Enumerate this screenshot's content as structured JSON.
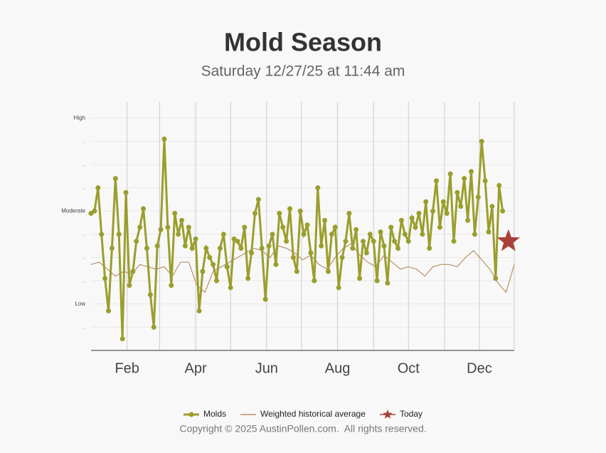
{
  "chart_data": {
    "type": "line",
    "title": "Mold Season",
    "subtitle": "Saturday 12/27/25 at 11:44 am",
    "xlim": [
      1,
      365
    ],
    "xticks": [
      {
        "value": 32,
        "label": "Feb"
      },
      {
        "value": 91,
        "label": "Apr"
      },
      {
        "value": 152,
        "label": "Jun"
      },
      {
        "value": 213,
        "label": "Aug"
      },
      {
        "value": 274,
        "label": "Oct"
      },
      {
        "value": 335,
        "label": "Dec"
      }
    ],
    "xminorticks": [
      60,
      121,
      182,
      244,
      305,
      365
    ],
    "ylim": [
      0,
      10.7
    ],
    "yticks": [
      {
        "value": 1,
        "label": "."
      },
      {
        "value": 2,
        "label": "Low"
      },
      {
        "value": 3,
        "label": "."
      },
      {
        "value": 4,
        "label": "."
      },
      {
        "value": 5,
        "label": "."
      },
      {
        "value": 6,
        "label": "Moderate"
      },
      {
        "value": 7,
        "label": "."
      },
      {
        "value": 8,
        "label": "."
      },
      {
        "value": 9,
        "label": "."
      },
      {
        "value": 10,
        "label": "High"
      }
    ],
    "grid": true,
    "series": [
      {
        "name": "Molds",
        "color": "#9a9e2c",
        "x": [
          1,
          4,
          7,
          10,
          13,
          16,
          19,
          22,
          25,
          28,
          31,
          34,
          37,
          40,
          43,
          46,
          49,
          52,
          55,
          58,
          61,
          64,
          67,
          70,
          73,
          76,
          79,
          82,
          85,
          88,
          91,
          94,
          97,
          100,
          103,
          106,
          109,
          112,
          115,
          118,
          121,
          124,
          127,
          130,
          133,
          136,
          139,
          142,
          145,
          148,
          151,
          154,
          157,
          160,
          163,
          166,
          169,
          172,
          175,
          178,
          181,
          184,
          187,
          190,
          193,
          196,
          199,
          202,
          205,
          208,
          211,
          214,
          217,
          220,
          223,
          226,
          229,
          232,
          235,
          238,
          241,
          244,
          247,
          250,
          253,
          256,
          259,
          262,
          265,
          268,
          271,
          274,
          277,
          280,
          283,
          286,
          289,
          292,
          295,
          298,
          301,
          304,
          307,
          310,
          313,
          316,
          319,
          322,
          325,
          328,
          331,
          334,
          337,
          340,
          343,
          346,
          349,
          352,
          355
        ],
        "values": [
          5.9,
          6.0,
          7.0,
          5.0,
          3.1,
          1.7,
          4.4,
          7.4,
          5.0,
          0.5,
          6.8,
          2.8,
          3.4,
          4.7,
          5.3,
          6.1,
          4.4,
          2.4,
          1.0,
          4.5,
          5.2,
          9.1,
          5.3,
          2.8,
          5.9,
          5.0,
          5.6,
          4.5,
          5.3,
          4.4,
          4.8,
          1.7,
          3.4,
          4.4,
          4.0,
          3.7,
          3.0,
          4.4,
          5.0,
          3.6,
          2.7,
          4.8,
          4.7,
          4.4,
          5.3,
          3.1,
          4.2,
          5.9,
          6.5,
          4.4,
          2.2,
          4.5,
          5.0,
          3.7,
          5.9,
          5.3,
          4.7,
          6.1,
          4.0,
          3.4,
          6.0,
          5.0,
          5.4,
          4.2,
          3.0,
          7.0,
          4.5,
          5.6,
          3.4,
          5.0,
          5.3,
          2.7,
          4.0,
          4.7,
          5.9,
          4.4,
          5.2,
          3.1,
          4.7,
          4.2,
          5.0,
          4.7,
          3.0,
          5.1,
          4.5,
          2.9,
          5.3,
          4.7,
          4.4,
          5.6,
          5.0,
          4.7,
          5.7,
          5.3,
          5.9,
          5.0,
          6.4,
          4.4,
          6.0,
          7.3,
          5.3,
          6.4,
          5.9,
          7.6,
          4.7,
          6.8,
          6.2,
          7.4,
          5.6,
          7.7,
          5.0,
          6.6,
          9.0,
          7.3,
          5.1,
          6.2,
          3.1,
          7.1,
          6.0
        ]
      },
      {
        "name": "Weighted historical average",
        "color": "#b8926a",
        "x": [
          1,
          8,
          15,
          22,
          29,
          36,
          43,
          50,
          57,
          64,
          71,
          78,
          85,
          92,
          99,
          106,
          113,
          120,
          127,
          134,
          141,
          148,
          155,
          162,
          169,
          176,
          183,
          190,
          197,
          204,
          211,
          218,
          225,
          232,
          239,
          246,
          253,
          260,
          267,
          274,
          281,
          288,
          295,
          302,
          309,
          316,
          323,
          330,
          337,
          344,
          351,
          358,
          365
        ],
        "values": [
          3.7,
          3.8,
          3.5,
          3.2,
          3.4,
          3.3,
          3.7,
          3.6,
          3.5,
          3.6,
          3.2,
          3.8,
          3.8,
          2.8,
          2.5,
          3.4,
          3.6,
          3.8,
          4.0,
          4.2,
          4.4,
          4.3,
          4.0,
          4.5,
          4.4,
          4.2,
          3.9,
          4.1,
          3.7,
          3.5,
          4.0,
          4.4,
          4.6,
          4.1,
          3.8,
          3.6,
          4.1,
          3.8,
          3.5,
          3.6,
          3.5,
          3.2,
          3.6,
          3.7,
          3.7,
          3.6,
          4.0,
          4.3,
          3.9,
          3.5,
          2.9,
          2.5,
          3.7
        ]
      }
    ],
    "today": {
      "name": "Today",
      "color": "#a8403a",
      "x": 360,
      "value": 4.7
    },
    "footer": "Copyright © 2025 AustinPollen.com.  All rights reserved."
  }
}
